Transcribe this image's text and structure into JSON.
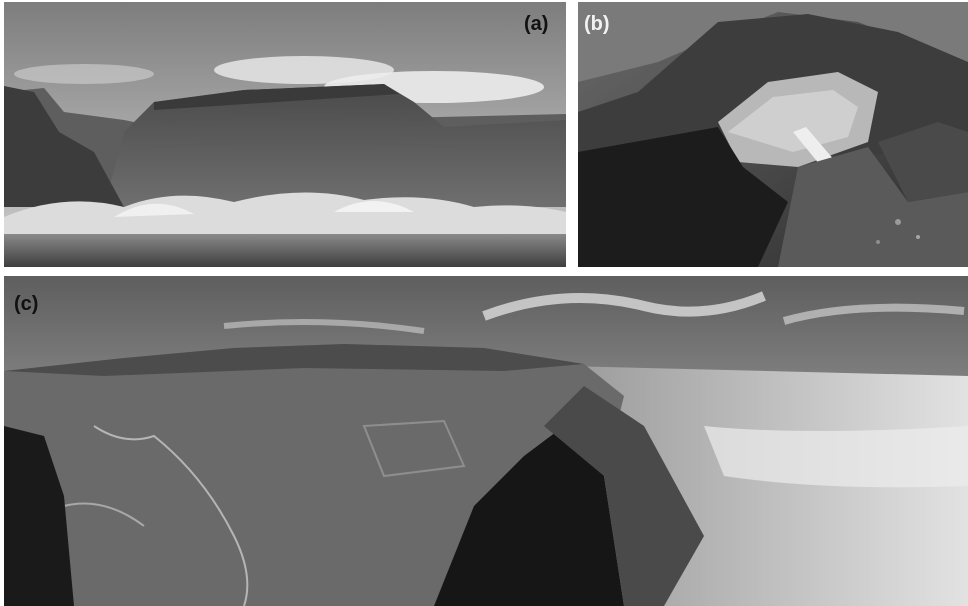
{
  "panels": [
    {
      "id": "a",
      "label": "(a)"
    },
    {
      "id": "b",
      "label": "(b)"
    },
    {
      "id": "c",
      "label": "(c)"
    }
  ],
  "colors": {
    "background": "#ffffff",
    "label_dark": "#111111",
    "label_light": "#f2f2f2"
  }
}
